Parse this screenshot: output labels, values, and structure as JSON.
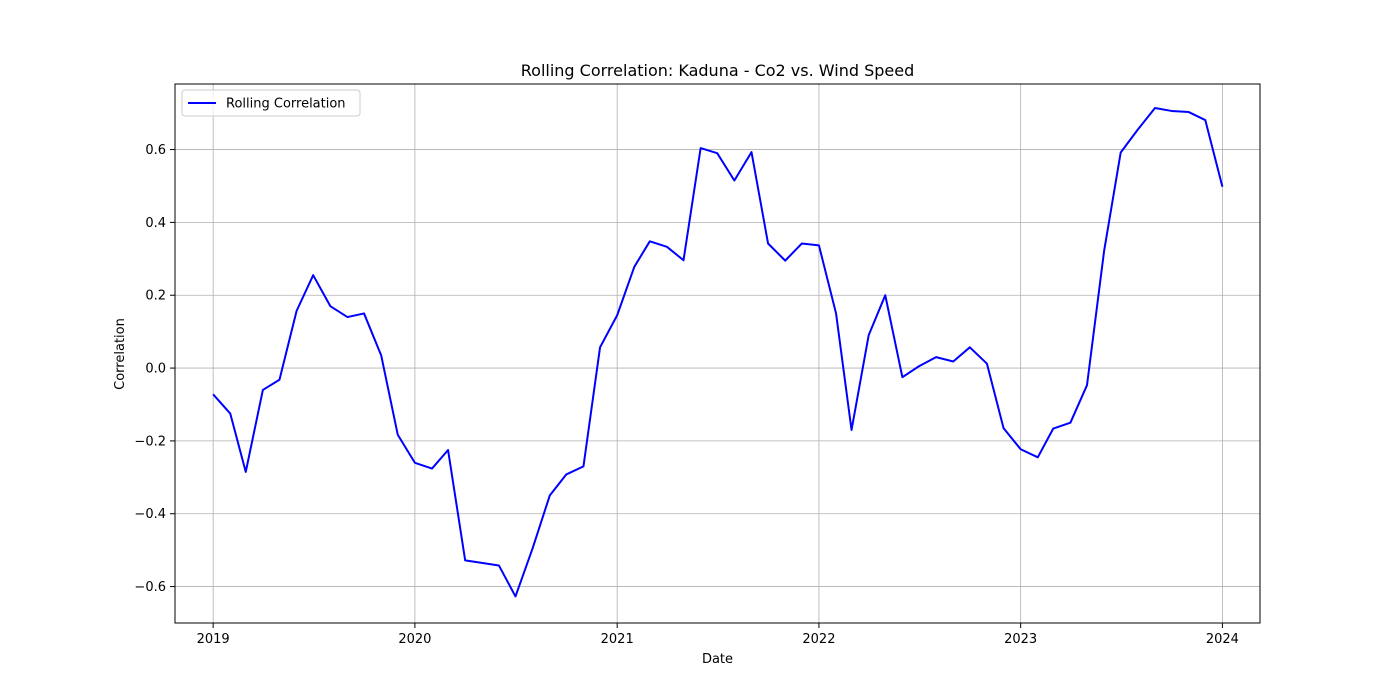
{
  "chart_data": {
    "type": "line",
    "title": "Rolling Correlation: Kaduna - Co2 vs. Wind Speed",
    "xlabel": "Date",
    "ylabel": "Correlation",
    "xlim": [
      "2018-10-24",
      "2024-03-09"
    ],
    "ylim": [
      -0.7,
      0.78
    ],
    "x_ticks": [
      "2019",
      "2020",
      "2021",
      "2022",
      "2023",
      "2024"
    ],
    "y_ticks": [
      -0.6,
      -0.4,
      -0.2,
      0.0,
      0.2,
      0.4,
      0.6
    ],
    "y_tick_labels": [
      "−0.6",
      "−0.4",
      "−0.2",
      "0.0",
      "0.2",
      "0.4",
      "0.6"
    ],
    "grid": true,
    "legend_position": "top-left",
    "series": [
      {
        "name": "Rolling Correlation",
        "color": "#0000ff",
        "x": [
          "2019-01-01",
          "2019-02-01",
          "2019-03-01",
          "2019-04-01",
          "2019-05-01",
          "2019-06-01",
          "2019-07-01",
          "2019-08-01",
          "2019-09-01",
          "2019-10-01",
          "2019-11-01",
          "2019-12-01",
          "2020-01-01",
          "2020-02-01",
          "2020-03-01",
          "2020-04-01",
          "2020-05-01",
          "2020-06-01",
          "2020-07-01",
          "2020-08-01",
          "2020-09-01",
          "2020-10-01",
          "2020-11-01",
          "2020-12-01",
          "2021-01-01",
          "2021-02-01",
          "2021-03-01",
          "2021-04-01",
          "2021-05-01",
          "2021-06-01",
          "2021-07-01",
          "2021-08-01",
          "2021-09-01",
          "2021-10-01",
          "2021-11-01",
          "2021-12-01",
          "2022-01-01",
          "2022-02-01",
          "2022-03-01",
          "2022-04-01",
          "2022-05-01",
          "2022-06-01",
          "2022-07-01",
          "2022-08-01",
          "2022-09-01",
          "2022-10-01",
          "2022-11-01",
          "2022-12-01",
          "2023-01-01",
          "2023-02-01",
          "2023-03-01",
          "2023-04-01",
          "2023-05-01",
          "2023-06-01",
          "2023-07-01",
          "2023-08-01",
          "2023-09-01",
          "2023-10-01",
          "2023-11-01",
          "2023-12-01",
          "2024-01-01"
        ],
        "y": [
          -0.072,
          -0.125,
          -0.285,
          -0.06,
          -0.032,
          0.157,
          0.255,
          0.17,
          0.14,
          0.15,
          0.035,
          -0.183,
          -0.26,
          -0.276,
          -0.225,
          -0.528,
          -0.535,
          -0.542,
          -0.627,
          -0.495,
          -0.35,
          -0.292,
          -0.27,
          0.057,
          0.145,
          0.278,
          0.348,
          0.333,
          0.296,
          0.604,
          0.59,
          0.515,
          0.593,
          0.342,
          0.295,
          0.342,
          0.337,
          0.15,
          -0.17,
          0.09,
          0.2,
          -0.025,
          0.005,
          0.03,
          0.018,
          0.057,
          0.012,
          -0.165,
          -0.223,
          -0.245,
          -0.166,
          -0.15,
          -0.047,
          0.322,
          0.592,
          0.655,
          0.714,
          0.706,
          0.703,
          0.681,
          0.498
        ]
      }
    ]
  }
}
